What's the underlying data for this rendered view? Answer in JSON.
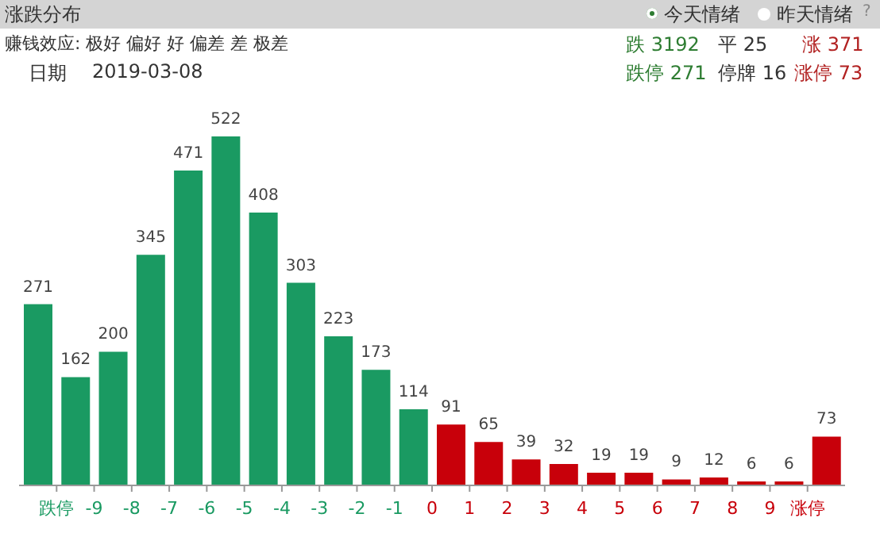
{
  "chart_data": {
    "type": "bar",
    "title": "涨跌分布",
    "annotations": [
      "今天情绪",
      "昨天情绪",
      "?",
      "赚钱效应: 极好 偏好 好 偏差 差 极差",
      "日期",
      "2019-03-08",
      "跌 3192",
      "平 25",
      "涨 371",
      "跌停 271",
      "停牌 16",
      "涨停 73"
    ],
    "x": [
      -10.5,
      -9.5,
      -8.5,
      -7.5,
      -6.5,
      -5.5,
      -4.5,
      -3.5,
      -2.5,
      -1.5,
      -0.5,
      0.5,
      1.5,
      2.5,
      3.5,
      4.5,
      5.5,
      6.5,
      7.5,
      8.5,
      9.5,
      10.5
    ],
    "values": [
      271,
      162,
      200,
      345,
      471,
      522,
      408,
      303,
      223,
      173,
      114,
      91,
      65,
      39,
      32,
      19,
      19,
      9,
      12,
      6,
      6,
      73
    ],
    "colors": [
      "#1a9a62",
      "#1a9a62",
      "#1a9a62",
      "#1a9a62",
      "#1a9a62",
      "#1a9a62",
      "#1a9a62",
      "#1a9a62",
      "#1a9a62",
      "#1a9a62",
      "#1a9a62",
      "#c8000a",
      "#c8000a",
      "#c8000a",
      "#c8000a",
      "#c8000a",
      "#c8000a",
      "#c8000a",
      "#c8000a",
      "#c8000a",
      "#c8000a",
      "#c8000a"
    ],
    "xlim": [
      -11,
      11
    ],
    "xticks": [
      {
        "value": -10,
        "label": "跌停"
      },
      -9,
      -8,
      -7,
      -6,
      -5,
      -4,
      -3,
      -2,
      -1,
      0,
      1,
      2,
      3,
      4,
      5,
      6,
      7,
      8,
      9,
      {
        "value": 10,
        "label": "涨停"
      }
    ],
    "data_labels": true,
    "grid": false,
    "tick_labels": "x"
  }
}
